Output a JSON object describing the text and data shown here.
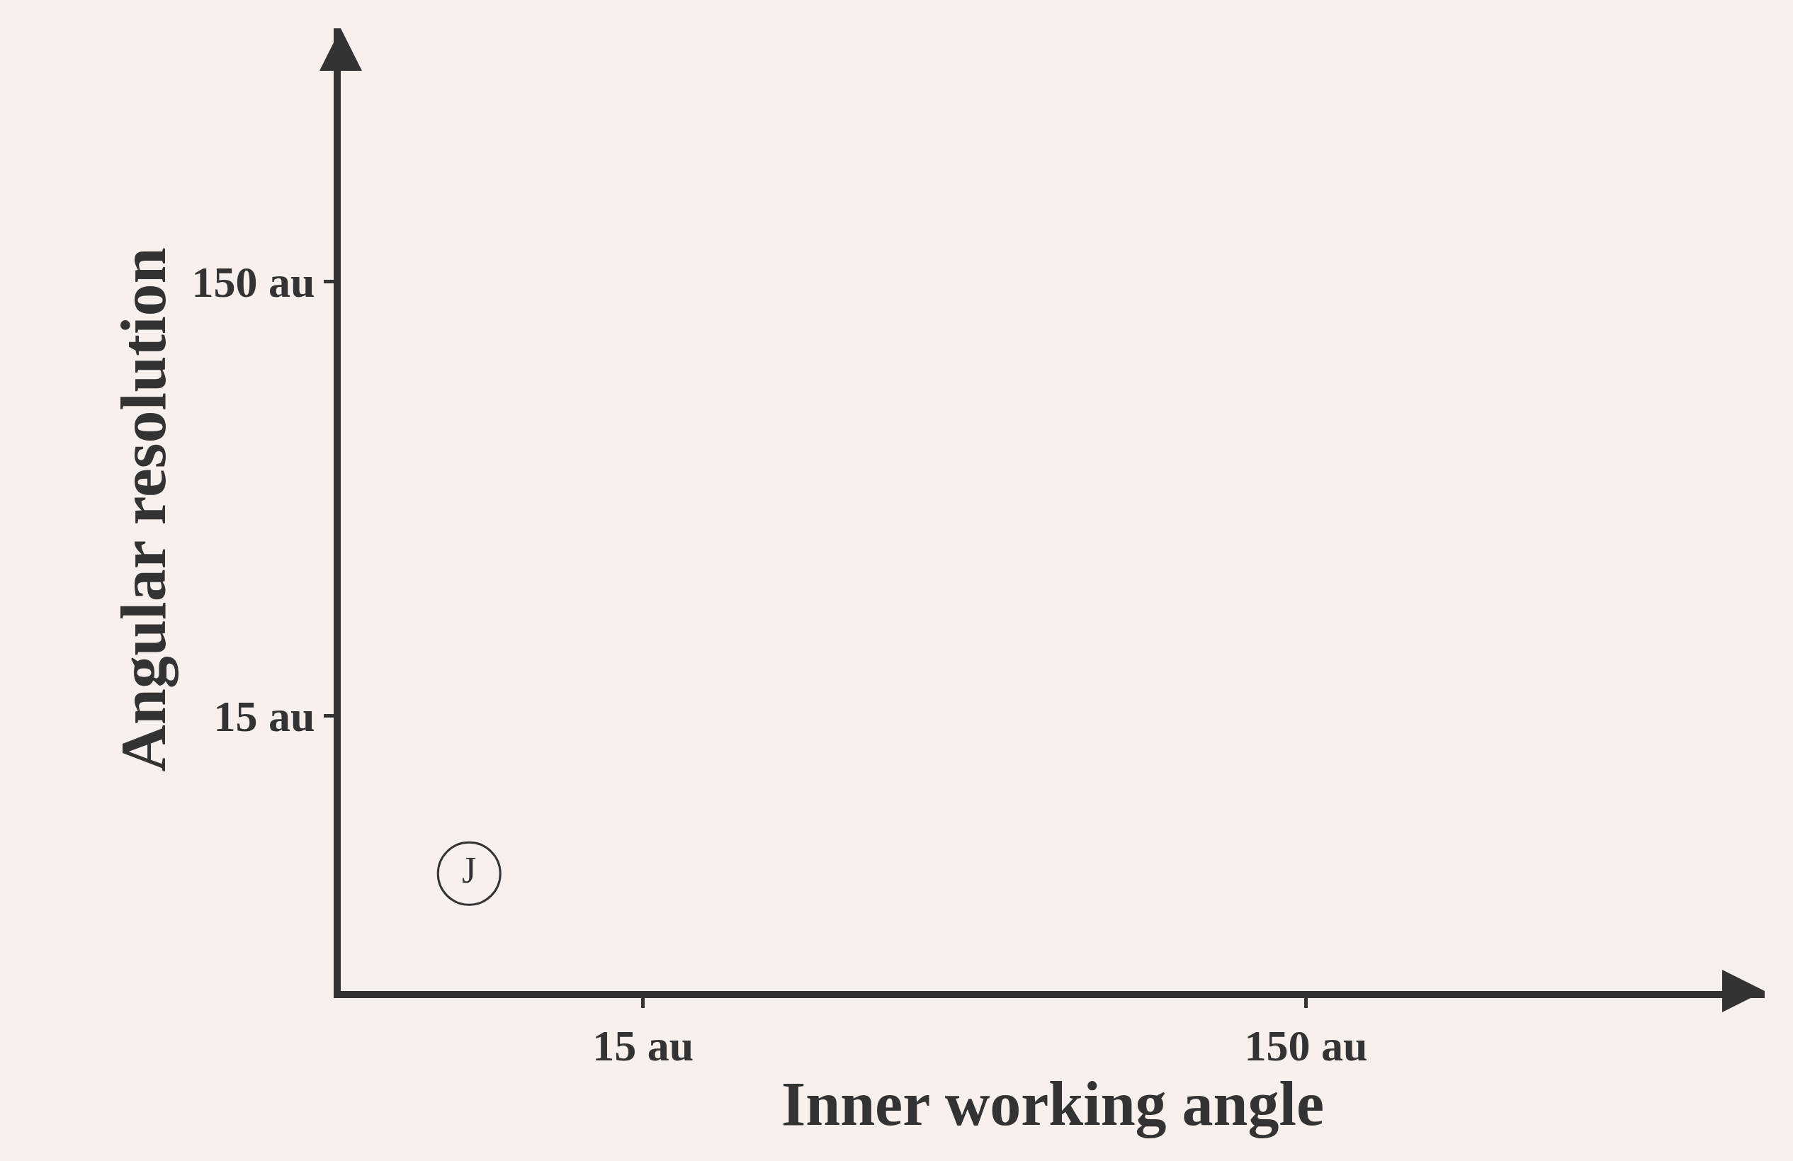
{
  "chart_data": {
    "type": "scatter",
    "xlabel": "Inner working angle",
    "ylabel": "Angular resolution",
    "log": "xy",
    "xlim": [
      5.25,
      738
    ],
    "ylim": [
      3.49,
      573
    ],
    "xticks": [
      {
        "value": 15,
        "label": "15 au"
      },
      {
        "value": 150,
        "label": "150 au"
      }
    ],
    "yticks": [
      {
        "value": 15,
        "label": "15 au"
      },
      {
        "value": 150,
        "label": "150 au"
      }
    ],
    "grid": false,
    "legend": false,
    "marker": "circle",
    "series": [
      {
        "name": "J",
        "color": "#333333",
        "x": [
          8.2
        ],
        "values": [
          6.5
        ]
      }
    ]
  }
}
